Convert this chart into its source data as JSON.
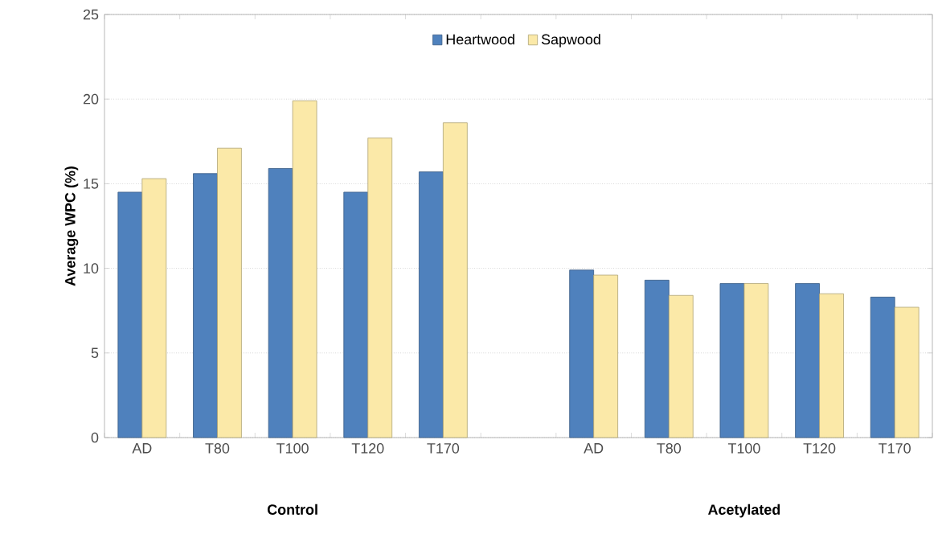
{
  "chart_data": {
    "type": "bar",
    "ylabel": "Average WPC (%)",
    "categories": [
      "AD",
      "T80",
      "T100",
      "T120",
      "T170",
      null,
      "AD",
      "T80",
      "T100",
      "T120",
      "T170"
    ],
    "series": [
      {
        "name": "Heartwood",
        "color": "#4f81bd",
        "values": [
          14.5,
          15.6,
          15.9,
          14.5,
          15.7,
          null,
          9.9,
          9.3,
          9.1,
          9.1,
          8.3
        ]
      },
      {
        "name": "Sapwood",
        "color": "#fbe9a8",
        "values": [
          15.3,
          17.1,
          19.9,
          17.7,
          18.6,
          null,
          9.6,
          8.4,
          9.1,
          8.5,
          7.7
        ]
      }
    ],
    "ylim": [
      0,
      25
    ],
    "yticks": [
      0,
      5,
      10,
      15,
      20,
      25
    ],
    "grid": "y",
    "legend": "top",
    "annotations": [
      "Control",
      "Acetylated"
    ]
  }
}
